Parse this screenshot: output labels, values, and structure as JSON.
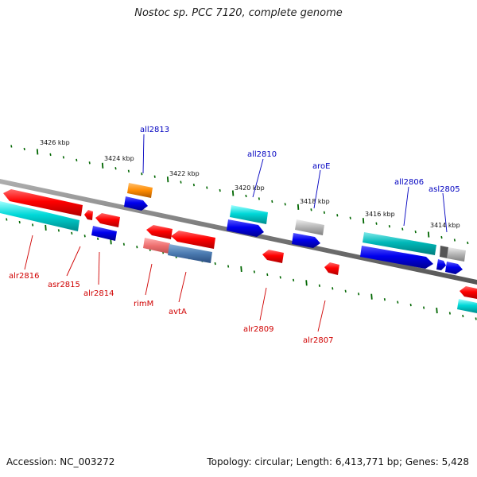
{
  "title": "Nostoc sp. PCC 7120, complete genome",
  "accession": "Accession: NC_003272",
  "topology": "Topology: circular; Length: 6,413,771 bp; Genes: 5,428",
  "scale_labels": [
    "3426 kbp",
    "3424 kbp",
    "3422 kbp",
    "3420 kbp",
    "3418 kbp",
    "3416 kbp",
    "3414 kbp"
  ],
  "genes_forward_strand_labels": [
    "all2813",
    "all2810",
    "aroE",
    "all2806",
    "asl2805"
  ],
  "genes_reverse_strand_labels": [
    "alr2816",
    "asr2815",
    "alr2814",
    "rimM",
    "avtA",
    "alr2809",
    "alr2807"
  ],
  "colors": {
    "red": "#ff0000",
    "blue": "#0000ee",
    "cyan": "#00cccc",
    "orange": "#ff8800",
    "gray": "#aaaaaa",
    "tick_green": "#006600",
    "backbone": "#888888",
    "label_blue": "#0000c0",
    "label_red": "#d00000"
  }
}
